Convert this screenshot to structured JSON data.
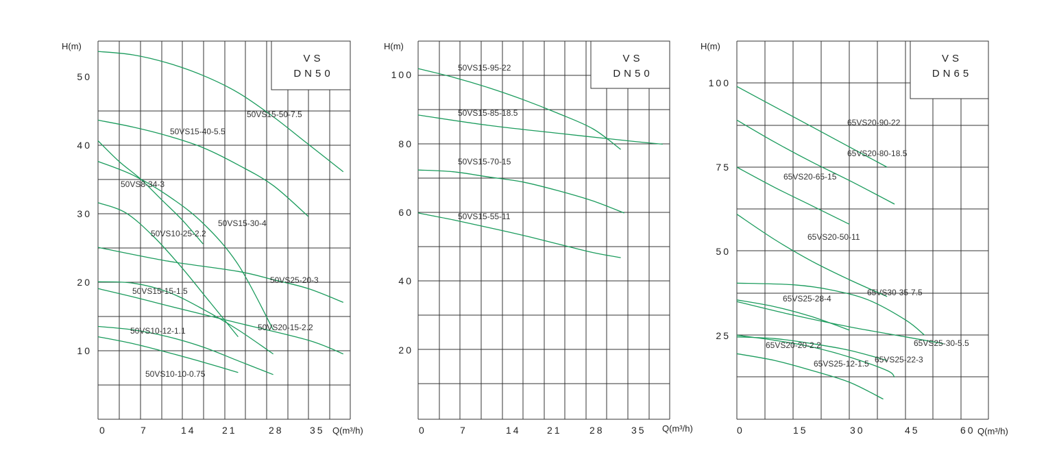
{
  "colors": {
    "curve": "#1a9b5c",
    "grid": "#333333",
    "background": "#ffffff"
  },
  "chart_data": [
    {
      "type": "line",
      "box_lines": [
        "VS",
        "DN50"
      ],
      "ylabel": "H(m)",
      "xlabel": "Q(m³/h)",
      "xlim": [
        0,
        36
      ],
      "ylim": [
        0,
        55
      ],
      "x_ticks": [
        "0",
        "7",
        "14",
        "21",
        "28",
        "35"
      ],
      "y_ticks": [
        "10",
        "20",
        "30",
        "40",
        "50"
      ],
      "series": [
        {
          "name": "50VS15-50-7.5",
          "x": [
            0,
            5,
            10,
            15,
            20,
            25,
            30,
            35
          ],
          "y": [
            53.5,
            53,
            51.8,
            50,
            47.5,
            44,
            40,
            36
          ]
        },
        {
          "name": "50VS15-40-5.5",
          "x": [
            0,
            5,
            10,
            15,
            20,
            25,
            30
          ],
          "y": [
            43.5,
            42.5,
            41.2,
            39.5,
            37,
            34,
            29.5
          ]
        },
        {
          "name": "50VS8-34-3",
          "x": [
            0,
            3,
            6,
            9,
            12,
            15
          ],
          "y": [
            40.5,
            37.5,
            35,
            32,
            29,
            25.5
          ]
        },
        {
          "name": "50VS15-30-4",
          "x": [
            0,
            5,
            10,
            15,
            20,
            25
          ],
          "y": [
            37.5,
            35.5,
            32.5,
            28.5,
            22.5,
            13
          ]
        },
        {
          "name": "50VS10-25-2.2",
          "x": [
            0,
            4,
            8,
            12,
            16,
            20
          ],
          "y": [
            31.5,
            30,
            26.5,
            22,
            17,
            12
          ]
        },
        {
          "name": "50VS25-20-3",
          "x": [
            0,
            10,
            20,
            25,
            30,
            35
          ],
          "y": [
            25,
            23,
            21.5,
            20.3,
            19,
            17
          ]
        },
        {
          "name": "50VS15-15-1.5",
          "x": [
            0,
            5,
            10,
            15,
            20,
            25
          ],
          "y": [
            20,
            19.8,
            18.5,
            16,
            13,
            9.5
          ]
        },
        {
          "name": "50VS20-15-2.2",
          "x": [
            0,
            5,
            10,
            20,
            30,
            35
          ],
          "y": [
            19,
            17.8,
            16.5,
            14,
            11.5,
            9.5
          ]
        },
        {
          "name": "50VS10-12-1.1",
          "x": [
            0,
            5,
            10,
            15,
            20,
            25
          ],
          "y": [
            13.5,
            13,
            12,
            10.5,
            8.5,
            6.5
          ]
        },
        {
          "name": "50VS10-10-0.75",
          "x": [
            0,
            5,
            10,
            15,
            20
          ],
          "y": [
            12,
            11,
            9.7,
            8.3,
            6.8
          ]
        }
      ]
    },
    {
      "type": "line",
      "box_lines": [
        "VS",
        "DN50"
      ],
      "ylabel": "H(m)",
      "xlabel": "Q(m³/h)",
      "xlim": [
        0,
        36
      ],
      "ylim": [
        0,
        110
      ],
      "x_ticks": [
        "0",
        "7",
        "14",
        "21",
        "28",
        "35"
      ],
      "y_ticks": [
        "20",
        "40",
        "60",
        "80",
        "100"
      ],
      "series": [
        {
          "name": "50VS15-95-22",
          "x": [
            0,
            5,
            10,
            15,
            20,
            25,
            29
          ],
          "y": [
            102,
            99.5,
            96.5,
            93,
            89,
            84.5,
            78.5
          ]
        },
        {
          "name": "50VS15-85-18.5",
          "x": [
            0,
            10,
            20,
            30,
            35
          ],
          "y": [
            88.5,
            85.5,
            83.2,
            81,
            80
          ]
        },
        {
          "name": "50VS15-70-15",
          "x": [
            0,
            5,
            10,
            15,
            20,
            25,
            29.5
          ],
          "y": [
            72.5,
            72,
            70.5,
            69,
            66.5,
            63.5,
            60
          ]
        },
        {
          "name": "50VS15-55-11",
          "x": [
            0,
            5,
            10,
            15,
            20,
            25,
            29
          ],
          "y": [
            60,
            58,
            55.8,
            53.5,
            51,
            48.5,
            47
          ]
        }
      ]
    },
    {
      "type": "line",
      "box_lines": [
        "VS",
        "DN65"
      ],
      "ylabel": "H(m)",
      "xlabel": "Q(m³/h)",
      "xlim": [
        0,
        67
      ],
      "ylim": [
        0,
        112.5
      ],
      "x_ticks": [
        "0",
        "15",
        "30",
        "45",
        "60"
      ],
      "y_ticks": [
        "25",
        "50",
        "75",
        "100"
      ],
      "series": [
        {
          "name": "65VS20-90-22",
          "x": [
            0,
            10,
            20,
            30,
            40
          ],
          "y": [
            99,
            93,
            87,
            81,
            75
          ]
        },
        {
          "name": "65VS20-80-18.5",
          "x": [
            0,
            10,
            20,
            30,
            42
          ],
          "y": [
            89,
            82.5,
            76.5,
            71,
            64
          ]
        },
        {
          "name": "65VS20-65-15",
          "x": [
            0,
            10,
            20,
            30
          ],
          "y": [
            75,
            69,
            63.5,
            58
          ]
        },
        {
          "name": "65VS20-50-11",
          "x": [
            0,
            10,
            20,
            30,
            40
          ],
          "y": [
            61,
            53.5,
            47,
            41.5,
            36.5
          ]
        },
        {
          "name": "65VS30-35-7.5",
          "x": [
            0,
            15,
            25,
            35,
            45,
            50
          ],
          "y": [
            40.5,
            40,
            38.5,
            35.5,
            29.5,
            25
          ]
        },
        {
          "name": "65VS25-28-4",
          "x": [
            0,
            10,
            20,
            30
          ],
          "y": [
            35.5,
            33.5,
            30.5,
            26.5
          ]
        },
        {
          "name": "65VS25-30-5.5",
          "x": [
            0,
            15,
            30,
            45,
            55
          ],
          "y": [
            35,
            31,
            27.5,
            24.5,
            22.5
          ]
        },
        {
          "name": "65VS20-20-2.2",
          "x": [
            0,
            10,
            20,
            30,
            40
          ],
          "y": [
            24.5,
            24,
            22.5,
            20.5,
            17.5
          ]
        },
        {
          "name": "65VS25-22-3",
          "x": [
            0,
            10,
            20,
            30,
            40,
            42
          ],
          "y": [
            25,
            23.5,
            21.5,
            18.5,
            14.5,
            12.5
          ]
        },
        {
          "name": "65VS25-12-1.5",
          "x": [
            0,
            10,
            20,
            30,
            39
          ],
          "y": [
            19.5,
            17.5,
            14.5,
            11,
            6
          ]
        }
      ]
    }
  ],
  "series_labels": [
    [
      "50VS15-50-7.5",
      "50VS15-40-5.5",
      "50VS8-34-3",
      "50VS15-30-4",
      "50VS10-25-2.2",
      "50VS25-20-3",
      "50VS15-15-1.5",
      "50VS20-15-2.2",
      "50VS10-12-1.1",
      "50VS10-10-0.75"
    ],
    [
      "50VS15-95-22",
      "50VS15-85-18.5",
      "50VS15-70-15",
      "50VS15-55-11"
    ],
    [
      "65VS20-90-22",
      "65VS20-80-18.5",
      "65VS20-65-15",
      "65VS20-50-11",
      "65VS30-35-7.5",
      "65VS25-28-4",
      "65VS25-30-5.5",
      "65VS20-20-2.2",
      "65VS25-22-3",
      "65VS25-12-1.5"
    ]
  ]
}
